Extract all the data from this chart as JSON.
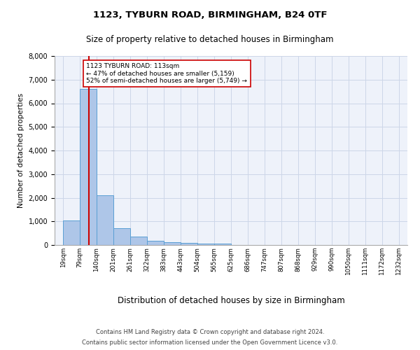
{
  "title1": "1123, TYBURN ROAD, BIRMINGHAM, B24 0TF",
  "title2": "Size of property relative to detached houses in Birmingham",
  "xlabel": "Distribution of detached houses by size in Birmingham",
  "ylabel": "Number of detached properties",
  "footer1": "Contains HM Land Registry data © Crown copyright and database right 2024.",
  "footer2": "Contains public sector information licensed under the Open Government Licence v3.0.",
  "annotation_title": "1123 TYBURN ROAD: 113sqm",
  "annotation_line1": "← 47% of detached houses are smaller (5,159)",
  "annotation_line2": "52% of semi-detached houses are larger (5,749) →",
  "property_size_sqm": 113,
  "bar_left_edges": [
    19,
    79,
    140,
    201,
    261,
    322,
    383,
    443,
    504,
    565,
    625,
    686,
    747,
    807,
    868,
    929,
    990,
    1050,
    1111,
    1172
  ],
  "bar_heights": [
    1050,
    6600,
    2100,
    700,
    350,
    170,
    130,
    100,
    60,
    60,
    0,
    0,
    0,
    0,
    0,
    0,
    0,
    0,
    0,
    0
  ],
  "bin_width": 61,
  "bar_color": "#aec6e8",
  "bar_edge_color": "#5a9fd4",
  "vline_color": "#cc0000",
  "vline_x": 113,
  "annotation_box_edge_color": "#cc0000",
  "grid_color": "#ccd6e8",
  "background_color": "#eef2fa",
  "ylim": [
    0,
    8000
  ],
  "yticks": [
    0,
    1000,
    2000,
    3000,
    4000,
    5000,
    6000,
    7000,
    8000
  ],
  "tick_labels": [
    "19sqm",
    "79sqm",
    "140sqm",
    "201sqm",
    "261sqm",
    "322sqm",
    "383sqm",
    "443sqm",
    "504sqm",
    "565sqm",
    "625sqm",
    "686sqm",
    "747sqm",
    "807sqm",
    "868sqm",
    "929sqm",
    "990sqm",
    "1050sqm",
    "1111sqm",
    "1172sqm",
    "1232sqm"
  ]
}
